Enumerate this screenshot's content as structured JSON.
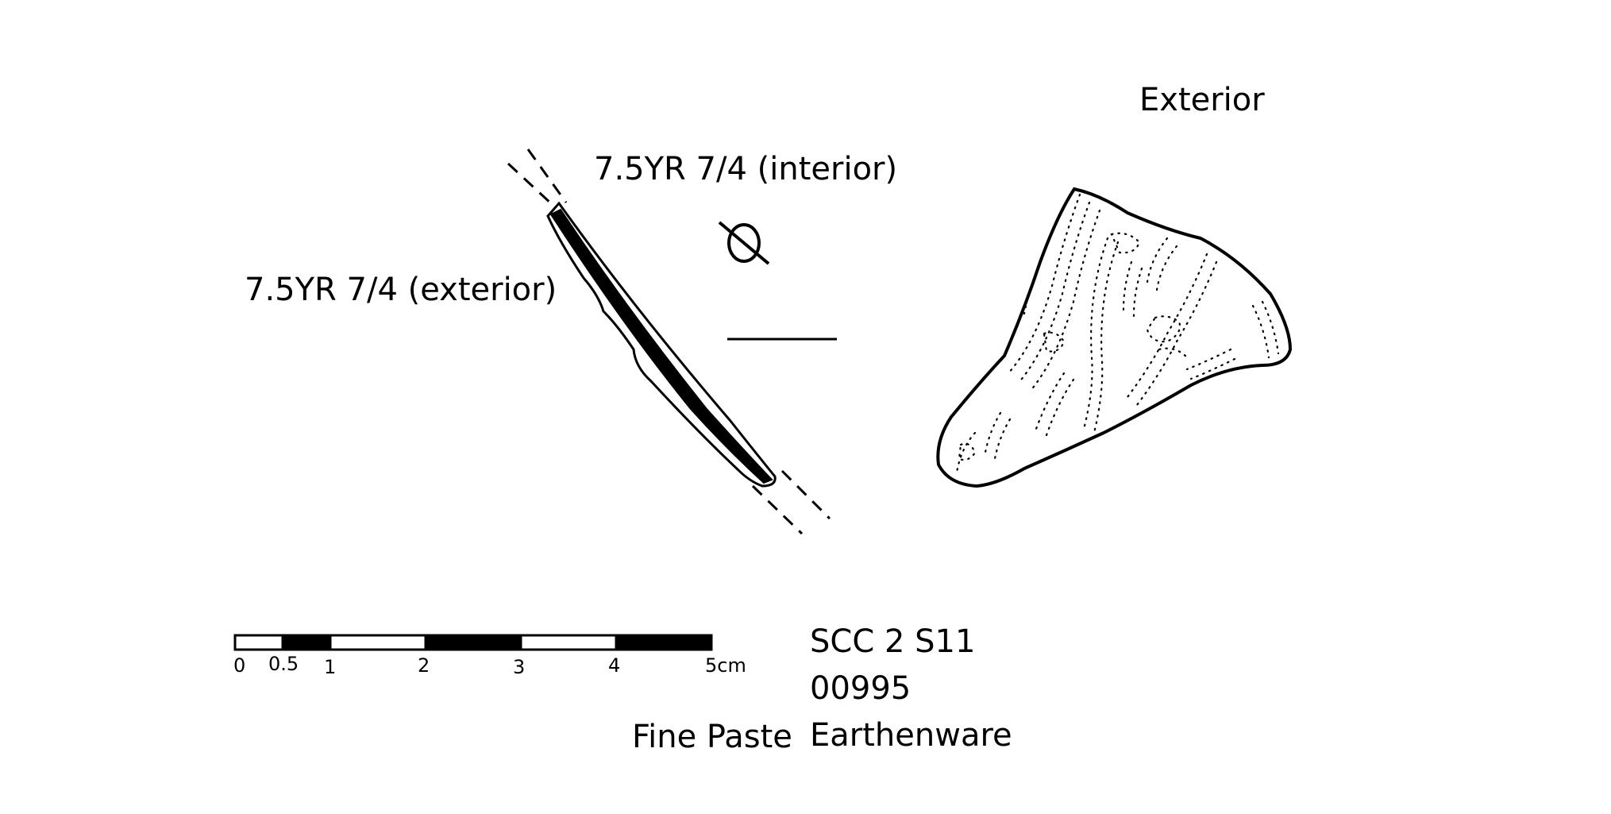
{
  "labels": {
    "exterior_view": "Exterior",
    "interior_color": "7.5YR 7/4 (interior)",
    "exterior_color": "7.5YR 7/4 (exterior)"
  },
  "scale": {
    "ticks": [
      "0",
      "0.5",
      "1",
      "2",
      "3",
      "4",
      "5cm"
    ]
  },
  "specimen": {
    "code": "SCC 2 S11",
    "number": "00995",
    "paste": "Fine Paste",
    "ware": "Earthenware"
  }
}
